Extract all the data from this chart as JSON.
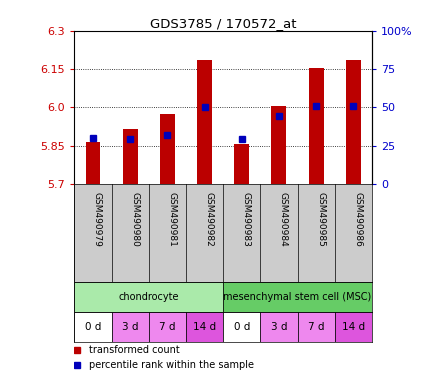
{
  "title": "GDS3785 / 170572_at",
  "samples": [
    "GSM490979",
    "GSM490980",
    "GSM490981",
    "GSM490982",
    "GSM490983",
    "GSM490984",
    "GSM490985",
    "GSM490986"
  ],
  "transformed_counts": [
    5.865,
    5.915,
    5.975,
    6.185,
    5.855,
    6.005,
    6.155,
    6.185
  ],
  "percentile_ranks": [
    30,
    29,
    32,
    50,
    29,
    44,
    51,
    51
  ],
  "ylim": [
    5.7,
    6.3
  ],
  "yticks": [
    5.7,
    5.85,
    6.0,
    6.15,
    6.3
  ],
  "y2ticks": [
    0,
    25,
    50,
    75,
    100
  ],
  "y2labels": [
    "0",
    "25",
    "50",
    "75",
    "100%"
  ],
  "bar_color": "#bb0000",
  "dot_color": "#0000bb",
  "cell_types": [
    {
      "label": "chondrocyte",
      "span": [
        0,
        4
      ],
      "color": "#aaeaaa"
    },
    {
      "label": "mesenchymal stem cell (MSC)",
      "span": [
        4,
        8
      ],
      "color": "#66cc66"
    }
  ],
  "time_labels": [
    "0 d",
    "3 d",
    "7 d",
    "14 d",
    "0 d",
    "3 d",
    "7 d",
    "14 d"
  ],
  "time_colors": [
    "#ffffff",
    "#ee88ee",
    "#ee88ee",
    "#dd55dd",
    "#ffffff",
    "#ee88ee",
    "#ee88ee",
    "#dd55dd"
  ],
  "legend_items": [
    {
      "label": "transformed count",
      "color": "#bb0000"
    },
    {
      "label": "percentile rank within the sample",
      "color": "#0000bb"
    }
  ],
  "tick_label_color_left": "#cc0000",
  "tick_label_color_right": "#0000cc",
  "xlabel_row_bg": "#cccccc",
  "bar_width": 0.4
}
